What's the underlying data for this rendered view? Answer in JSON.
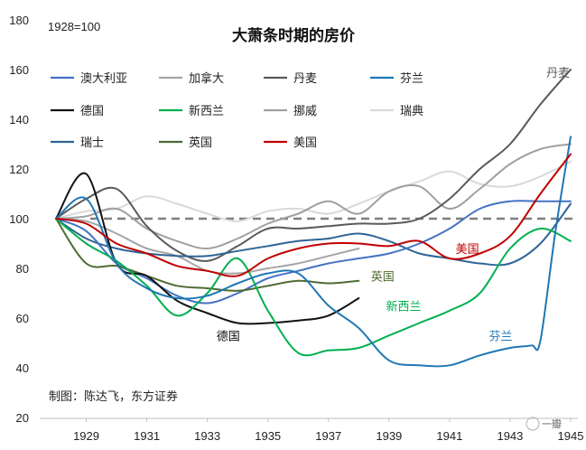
{
  "chart_data": {
    "type": "line",
    "title": "大萧条时期的房价",
    "base_note": "1928=100",
    "source_note": "制图：陈达飞，东方证券",
    "watermark": "一瓣",
    "xlim": [
      1928,
      1945
    ],
    "ylim": [
      20,
      180
    ],
    "y_ticks": [
      20,
      40,
      60,
      80,
      100,
      120,
      140,
      160,
      180
    ],
    "x_ticks": [
      1929,
      1931,
      1933,
      1935,
      1937,
      1939,
      1941,
      1943,
      1945
    ],
    "reference_line": {
      "value": 100,
      "color": "#7f7f7f",
      "style": "dashed"
    },
    "series": [
      {
        "name": "澳大利亚",
        "color": "#4472c4",
        "x": [
          1928,
          1929,
          1930,
          1931,
          1932,
          1933,
          1934,
          1935,
          1936,
          1937,
          1938,
          1939,
          1940,
          1941,
          1942,
          1943,
          1944,
          1945
        ],
        "y": [
          100,
          95,
          82,
          76,
          69,
          66,
          70,
          76,
          79,
          82,
          84,
          86,
          90,
          96,
          104,
          107,
          107,
          107
        ]
      },
      {
        "name": "加拿大",
        "color": "#a5a5a5",
        "x": [
          1928,
          1929,
          1930,
          1931,
          1932,
          1933,
          1934,
          1935,
          1936,
          1937,
          1938
        ],
        "y": [
          100,
          99,
          94,
          88,
          85,
          79,
          78,
          80,
          82,
          85,
          88
        ]
      },
      {
        "name": "丹麦",
        "color": "#595959",
        "x": [
          1928,
          1929,
          1930,
          1931,
          1932,
          1933,
          1934,
          1935,
          1936,
          1937,
          1938,
          1939,
          1940,
          1941,
          1942,
          1943,
          1944,
          1945
        ],
        "y": [
          100,
          108,
          112,
          97,
          87,
          83,
          89,
          96,
          96,
          97,
          98,
          98,
          100,
          108,
          120,
          130,
          146,
          160
        ]
      },
      {
        "name": "芬兰",
        "color": "#1f77b4",
        "x": [
          1928,
          1929,
          1930,
          1931,
          1932,
          1933,
          1934,
          1935,
          1936,
          1937,
          1938,
          1939,
          1940,
          1941,
          1942,
          1943,
          1943.7,
          1944,
          1944.5,
          1945
        ],
        "y": [
          100,
          108,
          82,
          72,
          68,
          69,
          74,
          78,
          78,
          65,
          56,
          43,
          41,
          41,
          45,
          48,
          49,
          51,
          95,
          133
        ]
      },
      {
        "name": "德国",
        "color": "#111111",
        "x": [
          1928,
          1929,
          1930,
          1931,
          1932,
          1933,
          1934,
          1935,
          1936,
          1937,
          1938
        ],
        "y": [
          100,
          118,
          82,
          77,
          67,
          62,
          58,
          58,
          59,
          61,
          68
        ]
      },
      {
        "name": "新西兰",
        "color": "#00b050",
        "x": [
          1928,
          1929,
          1930,
          1931,
          1932,
          1933,
          1934,
          1935,
          1936,
          1937,
          1938,
          1939,
          1940,
          1941,
          1942,
          1943,
          1944,
          1945
        ],
        "y": [
          100,
          90,
          83,
          73,
          61,
          70,
          84,
          63,
          46,
          47,
          48,
          53,
          58,
          63,
          70,
          88,
          96,
          91
        ]
      },
      {
        "name": "挪威",
        "color": "#a0a0a0",
        "x": [
          1928,
          1929,
          1930,
          1931,
          1932,
          1933,
          1934,
          1935,
          1936,
          1937,
          1938,
          1939,
          1940,
          1941,
          1942,
          1943,
          1944,
          1945
        ],
        "y": [
          100,
          101,
          104,
          96,
          91,
          88,
          92,
          98,
          102,
          107,
          102,
          111,
          113,
          104,
          112,
          122,
          128,
          130
        ]
      },
      {
        "name": "瑞典",
        "color": "#d9d9d9",
        "x": [
          1928,
          1929,
          1930,
          1931,
          1932,
          1933,
          1934,
          1935,
          1936,
          1937,
          1938,
          1939,
          1940,
          1941,
          1942,
          1943,
          1944,
          1945
        ],
        "y": [
          100,
          103,
          104,
          109,
          106,
          102,
          99,
          103,
          104,
          102,
          106,
          111,
          115,
          119,
          114,
          113,
          117,
          123
        ]
      },
      {
        "name": "瑞士",
        "color": "#2e6496",
        "x": [
          1928,
          1929,
          1930,
          1931,
          1932,
          1933,
          1934,
          1935,
          1936,
          1937,
          1938,
          1939,
          1940,
          1941,
          1942,
          1943,
          1944,
          1945
        ],
        "y": [
          100,
          92,
          88,
          86,
          85,
          85,
          87,
          89,
          91,
          92,
          94,
          91,
          86,
          84,
          82,
          82,
          90,
          106
        ]
      },
      {
        "name": "英国",
        "color": "#4e6b32",
        "x": [
          1928,
          1929,
          1930,
          1931,
          1932,
          1933,
          1934,
          1935,
          1936,
          1937,
          1938
        ],
        "y": [
          100,
          82,
          81,
          77,
          73,
          72,
          71,
          73,
          75,
          74,
          75
        ]
      },
      {
        "name": "美国",
        "color": "#c00000",
        "x": [
          1928,
          1929,
          1930,
          1931,
          1932,
          1933,
          1934,
          1935,
          1936,
          1937,
          1938,
          1939,
          1940,
          1941,
          1942,
          1943,
          1944,
          1945
        ],
        "y": [
          100,
          98,
          90,
          86,
          81,
          79,
          77,
          84,
          88,
          90,
          90,
          89,
          91,
          84,
          86,
          93,
          110,
          126
        ]
      }
    ],
    "annotations": [
      {
        "text": "丹麦",
        "series": "丹麦",
        "x": 1944.2,
        "y": 159,
        "color": "#595959"
      },
      {
        "text": "美国",
        "series": "美国",
        "x": 1941.2,
        "y": 88,
        "color": "#c00000"
      },
      {
        "text": "英国",
        "series": "英国",
        "x": 1938.4,
        "y": 77,
        "color": "#4e6b32"
      },
      {
        "text": "新西兰",
        "series": "新西兰",
        "x": 1938.9,
        "y": 65,
        "color": "#00b050"
      },
      {
        "text": "芬兰",
        "series": "芬兰",
        "x": 1942.3,
        "y": 53,
        "color": "#1f77b4"
      },
      {
        "text": "德国",
        "series": "德国",
        "x": 1933.3,
        "y": 53,
        "color": "#111111"
      }
    ]
  }
}
